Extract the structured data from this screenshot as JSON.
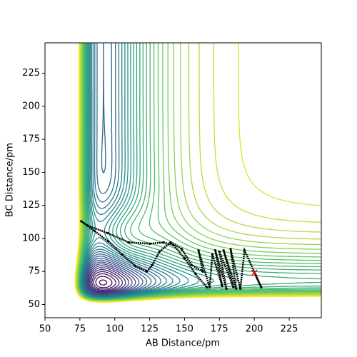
{
  "chart_data": {
    "type": "contour",
    "xlabel": "AB Distance/pm",
    "ylabel": "BC Distance/pm",
    "xlim": [
      50,
      248
    ],
    "ylim": [
      40,
      248
    ],
    "xticks": [
      50,
      75,
      100,
      125,
      150,
      175,
      200,
      225
    ],
    "yticks": [
      50,
      75,
      100,
      125,
      150,
      175,
      200,
      225
    ],
    "x": [
      200,
      205,
      193,
      190,
      183,
      187,
      178,
      185,
      175,
      180,
      172,
      177,
      170,
      168,
      160,
      163,
      155,
      148,
      140,
      132,
      127,
      123,
      115,
      105,
      95,
      85,
      76,
      80,
      95,
      110,
      125,
      135,
      142,
      150,
      158,
      166
    ],
    "values": [
      74,
      63,
      91,
      62,
      92,
      62,
      91,
      63,
      90,
      62,
      91,
      64,
      88,
      63,
      91,
      75,
      80,
      92,
      97,
      90,
      80,
      75,
      79,
      88,
      98,
      106,
      113,
      110,
      104,
      97,
      96,
      97,
      95,
      85,
      73,
      63
    ],
    "color": "#000000",
    "start": {
      "x": 200,
      "y": 74,
      "color": "#ff0000"
    }
  }
}
